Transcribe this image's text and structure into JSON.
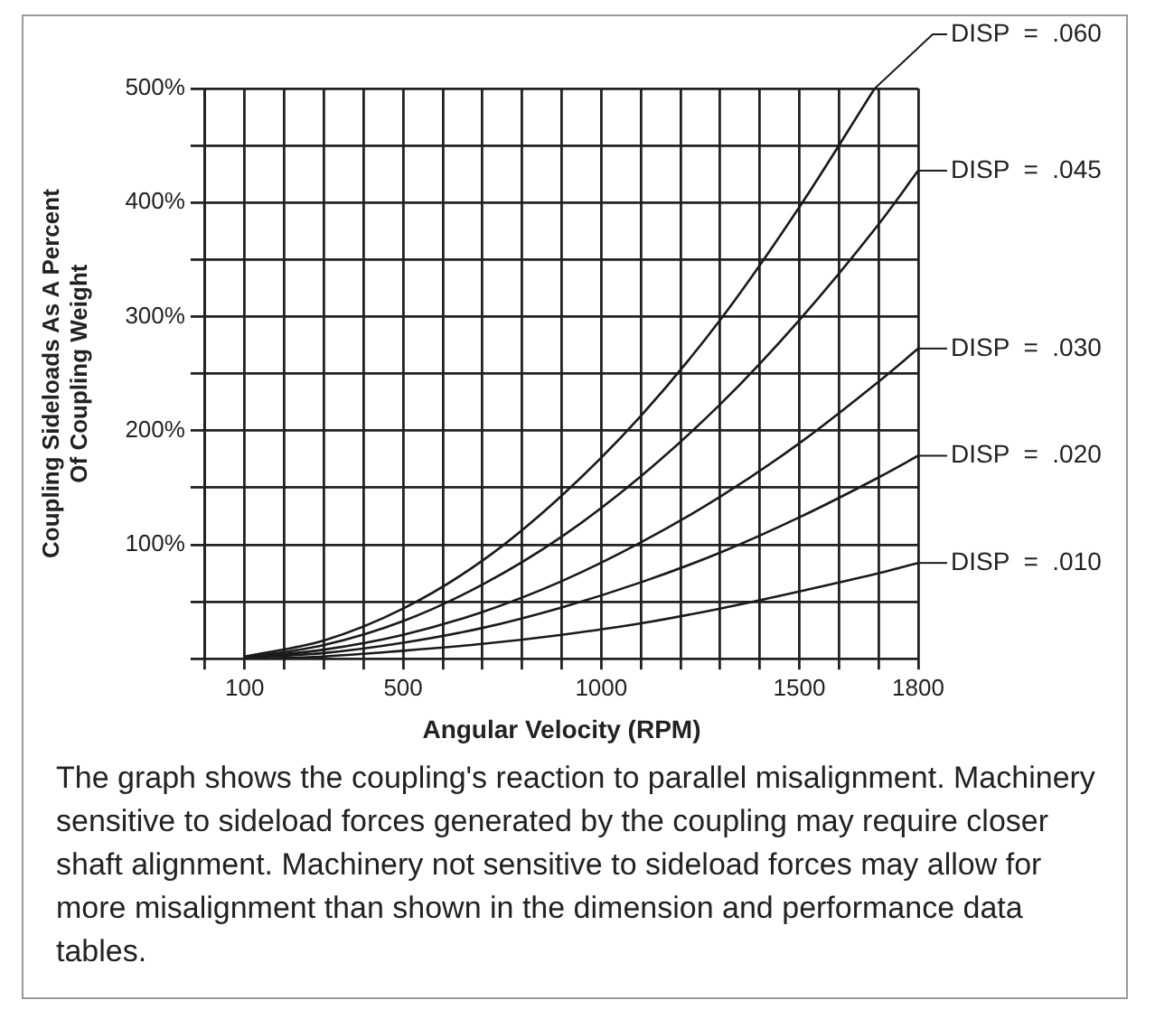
{
  "chart_data": {
    "type": "line",
    "xlabel": "Angular Velocity (RPM)",
    "ylabel": "Coupling Sideloads As A Percent\nOf Coupling Weight",
    "x": [
      100,
      300,
      500,
      700,
      900,
      1100,
      1300,
      1500,
      1700,
      1800
    ],
    "series": [
      {
        "name": "DISP  =  .060",
        "color": "#1a1a1a",
        "x": [
          100,
          300,
          500,
          700,
          900,
          1100,
          1300,
          1500,
          1690
        ],
        "values": [
          2,
          16,
          44,
          86,
          143,
          213,
          297,
          396,
          500
        ]
      },
      {
        "name": "DISP  =  .045",
        "color": "#1a1a1a",
        "values": [
          1,
          12,
          33,
          65,
          107,
          160,
          223,
          297,
          381,
          428
        ]
      },
      {
        "name": "DISP  =  .030",
        "color": "#1a1a1a",
        "values": [
          1,
          8,
          21,
          41,
          68,
          102,
          142,
          189,
          243,
          272
        ]
      },
      {
        "name": "DISP  =  .020",
        "color": "#1a1a1a",
        "values": [
          1,
          5,
          14,
          27,
          45,
          67,
          93,
          124,
          159,
          178
        ]
      },
      {
        "name": "DISP  =  .010",
        "color": "#1a1a1a",
        "values": [
          0,
          2,
          7,
          13,
          21,
          31,
          44,
          59,
          75,
          84
        ]
      }
    ],
    "xlim": [
      0,
      1800
    ],
    "xticks": [
      {
        "value": 0,
        "label": null
      },
      {
        "value": 100,
        "label": "100"
      },
      {
        "value": 200,
        "label": null
      },
      {
        "value": 300,
        "label": null
      },
      {
        "value": 400,
        "label": null
      },
      500,
      {
        "value": 600,
        "label": null
      },
      {
        "value": 700,
        "label": null
      },
      {
        "value": 800,
        "label": null
      },
      {
        "value": 900,
        "label": null
      },
      1000,
      {
        "value": 1100,
        "label": null
      },
      {
        "value": 1200,
        "label": null
      },
      {
        "value": 1300,
        "label": null
      },
      {
        "value": 1400,
        "label": null
      },
      1500,
      {
        "value": 1600,
        "label": null
      },
      {
        "value": 1700,
        "label": null
      },
      1800
    ],
    "ylim": [
      0,
      500
    ],
    "yticks": [
      {
        "value": 0,
        "label": null
      },
      {
        "value": 50,
        "label": null
      },
      {
        "value": 100,
        "label": "100%"
      },
      {
        "value": 150,
        "label": null
      },
      {
        "value": 200,
        "label": "200%"
      },
      {
        "value": 250,
        "label": null
      },
      {
        "value": 300,
        "label": "300%"
      },
      {
        "value": 350,
        "label": null
      },
      {
        "value": 400,
        "label": "400%"
      },
      {
        "value": 450,
        "label": null
      },
      {
        "value": 500,
        "label": "500%"
      }
    ],
    "grid": true,
    "legend": "right",
    "marker": "none",
    "line_style": "solid",
    "annotations": [
      "The graph shows the coupling's reaction to parallel misalignment. Machinery sensitive to sideload forces generated by the coupling may require closer shaft alignment. Machinery not sensitive to sideload forces may allow for more misalignment than shown in the dimension and performance data tables."
    ]
  }
}
